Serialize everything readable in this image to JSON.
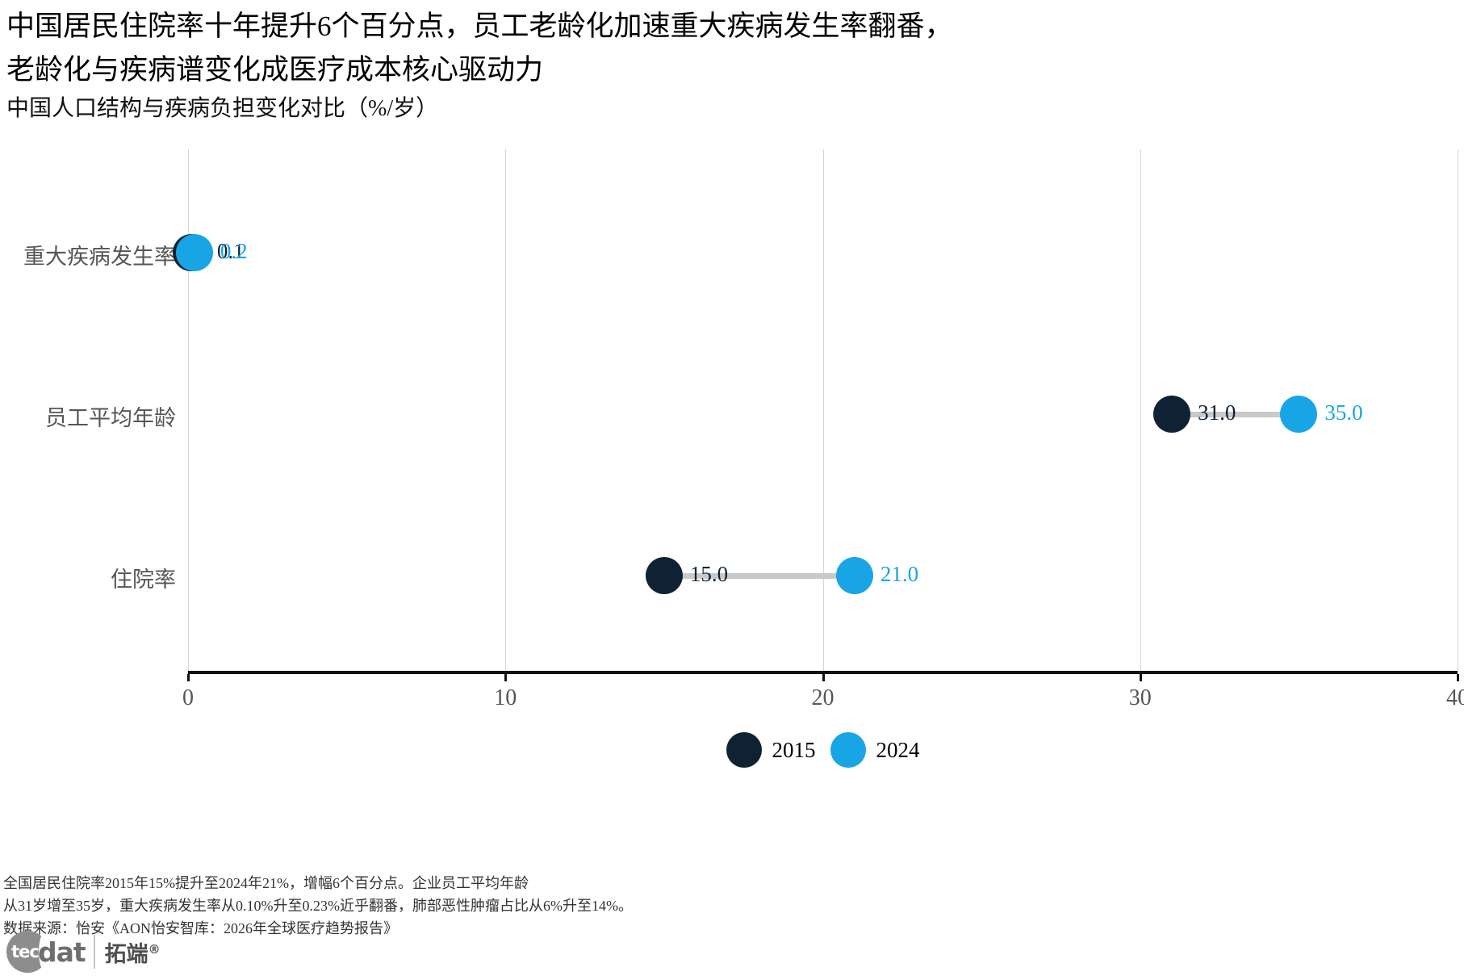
{
  "header": {
    "line1": "中国居民住院率十年提升6个百分点，员工老龄化加速重大疾病发生率翻番，",
    "line2": "老龄化与疾病谱变化成医疗成本核心驱动力"
  },
  "chart_data": {
    "type": "dumbbell",
    "title": "中国人口结构与疾病负担变化对比（%/岁）",
    "categories": [
      "重大疾病发生率",
      "员工平均年龄",
      "住院率"
    ],
    "series": [
      {
        "name": "2015",
        "color": "#0e2233",
        "values": [
          0.1,
          31.0,
          15.0
        ],
        "labels": [
          "0.1",
          "31.0",
          "15.0"
        ]
      },
      {
        "name": "2024",
        "color": "#18a5e6",
        "values": [
          0.2,
          35.0,
          21.0
        ],
        "labels": [
          "0.2",
          "35.0",
          "21.0"
        ]
      }
    ],
    "xlabel": "",
    "ylabel": "",
    "xlim": [
      0,
      40
    ],
    "xticks": [
      0,
      10,
      20,
      30,
      40
    ],
    "grid": true,
    "legend_position": "bottom",
    "connector_color": "#c9c9c9",
    "gridline_color": "#d6d6d6"
  },
  "footnotes": {
    "line1": "全国居民住院率2015年15%提升至2024年21%，增幅6个百分点。企业员工平均年龄",
    "line2": "从31岁增至35岁，重大疾病发生率从0.10%升至0.23%近乎翻番，肺部恶性肿瘤占比从6%升至14%。",
    "line3": "数据来源：怡安《AON怡安智库：2026年全球医疗趋势报告》"
  },
  "logo": {
    "tec": "tec",
    "dat": "dat",
    "brand": "拓端",
    "reg": "®"
  }
}
